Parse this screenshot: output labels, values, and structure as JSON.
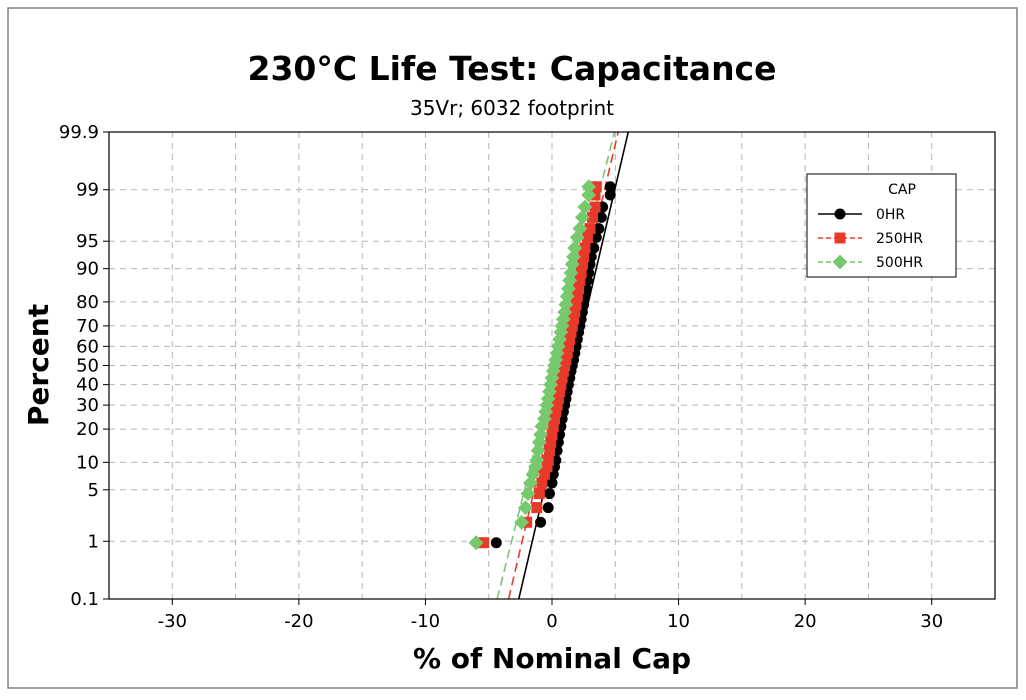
{
  "chart_data": {
    "type": "scatter",
    "title": "230°C Life Test: Capacitance",
    "subtitle": "35Vr; 6032 footprint",
    "xlabel": "% of Nominal Cap",
    "ylabel": "Percent",
    "x_ticks": [
      -30,
      -20,
      -10,
      0,
      10,
      20,
      30
    ],
    "xlim": [
      -35,
      35
    ],
    "y_scale": "normal-probability",
    "y_ticks": [
      0.1,
      1,
      5,
      10,
      20,
      30,
      40,
      50,
      60,
      70,
      80,
      90,
      95,
      99,
      99.9
    ],
    "ylim": [
      0.1,
      99.9
    ],
    "grid": true,
    "legend": {
      "title": "CAP",
      "placement": "top-right"
    },
    "series": [
      {
        "name": "0HR",
        "color": "#000000",
        "marker": "circle",
        "line": "solid",
        "fit": {
          "mean": 1.7,
          "sd": 1.4
        },
        "x": [
          -4.4,
          -0.9,
          -0.3,
          -0.2,
          0.0,
          0.1,
          0.2,
          0.3,
          0.4,
          0.5,
          0.6,
          0.7,
          0.8,
          0.9,
          1.0,
          1.1,
          1.2,
          1.3,
          1.4,
          1.5,
          1.6,
          1.7,
          1.8,
          1.9,
          2.0,
          2.1,
          2.2,
          2.3,
          2.4,
          2.5,
          2.6,
          2.7,
          2.8,
          2.9,
          3.0,
          3.1,
          3.3,
          3.5,
          3.7,
          3.9,
          4.0,
          4.6,
          4.6
        ],
        "y": [
          0.95,
          1.9,
          3.0,
          4.5,
          6.0,
          7.5,
          9.0,
          10.5,
          13.0,
          15.5,
          18.0,
          21.0,
          24.0,
          27.0,
          30.0,
          33.0,
          36.5,
          40.0,
          43.5,
          47.0,
          50.0,
          53.0,
          56.5,
          60.0,
          63.5,
          67.0,
          70.0,
          73.0,
          76.0,
          79.0,
          82.0,
          84.5,
          87.0,
          89.0,
          91.0,
          92.5,
          94.0,
          95.5,
          96.5,
          97.5,
          98.2,
          98.8,
          99.1
        ]
      },
      {
        "name": "250HR",
        "color": "#e8392b",
        "marker": "square",
        "line": "dashed",
        "fit": {
          "mean": 0.9,
          "sd": 1.4
        },
        "x": [
          -5.4,
          -2.0,
          -1.2,
          -1.0,
          -0.8,
          -0.6,
          -0.4,
          -0.3,
          -0.2,
          -0.1,
          0.0,
          0.1,
          0.2,
          0.3,
          0.4,
          0.5,
          0.6,
          0.7,
          0.8,
          0.9,
          1.0,
          1.1,
          1.2,
          1.3,
          1.4,
          1.5,
          1.6,
          1.7,
          1.8,
          1.9,
          2.0,
          2.1,
          2.2,
          2.3,
          2.4,
          2.5,
          2.6,
          2.8,
          3.0,
          3.2,
          3.4,
          3.4,
          3.5
        ],
        "y": [
          0.95,
          1.9,
          3.0,
          4.5,
          6.0,
          7.5,
          9.0,
          10.5,
          13.0,
          15.5,
          18.0,
          21.0,
          24.0,
          27.0,
          30.0,
          33.0,
          36.5,
          40.0,
          43.5,
          47.0,
          50.0,
          53.0,
          56.5,
          60.0,
          63.5,
          67.0,
          70.0,
          73.0,
          76.0,
          79.0,
          82.0,
          84.5,
          87.0,
          89.0,
          91.0,
          92.5,
          94.0,
          95.5,
          96.5,
          97.5,
          98.2,
          98.8,
          99.1
        ]
      },
      {
        "name": "500HR",
        "color": "#77c96e",
        "marker": "diamond",
        "line": "dashed",
        "fit": {
          "mean": 0.3,
          "sd": 1.5
        },
        "x": [
          -6.0,
          -2.4,
          -2.1,
          -1.9,
          -1.7,
          -1.5,
          -1.3,
          -1.2,
          -1.1,
          -1.0,
          -0.9,
          -0.8,
          -0.6,
          -0.5,
          -0.4,
          -0.3,
          -0.2,
          -0.1,
          0.0,
          0.1,
          0.2,
          0.3,
          0.4,
          0.5,
          0.6,
          0.7,
          0.8,
          0.9,
          1.0,
          1.1,
          1.2,
          1.3,
          1.4,
          1.5,
          1.6,
          1.7,
          1.8,
          2.0,
          2.2,
          2.4,
          2.6,
          2.9,
          2.9
        ],
        "y": [
          0.95,
          1.9,
          3.0,
          4.5,
          6.0,
          7.5,
          9.0,
          10.5,
          13.0,
          15.5,
          18.0,
          21.0,
          24.0,
          27.0,
          30.0,
          33.0,
          36.5,
          40.0,
          43.5,
          47.0,
          50.0,
          53.0,
          56.5,
          60.0,
          63.5,
          67.0,
          70.0,
          73.0,
          76.0,
          79.0,
          82.0,
          84.5,
          87.0,
          89.0,
          91.0,
          92.5,
          94.0,
          95.5,
          96.5,
          97.5,
          98.2,
          98.8,
          99.1
        ]
      }
    ]
  }
}
